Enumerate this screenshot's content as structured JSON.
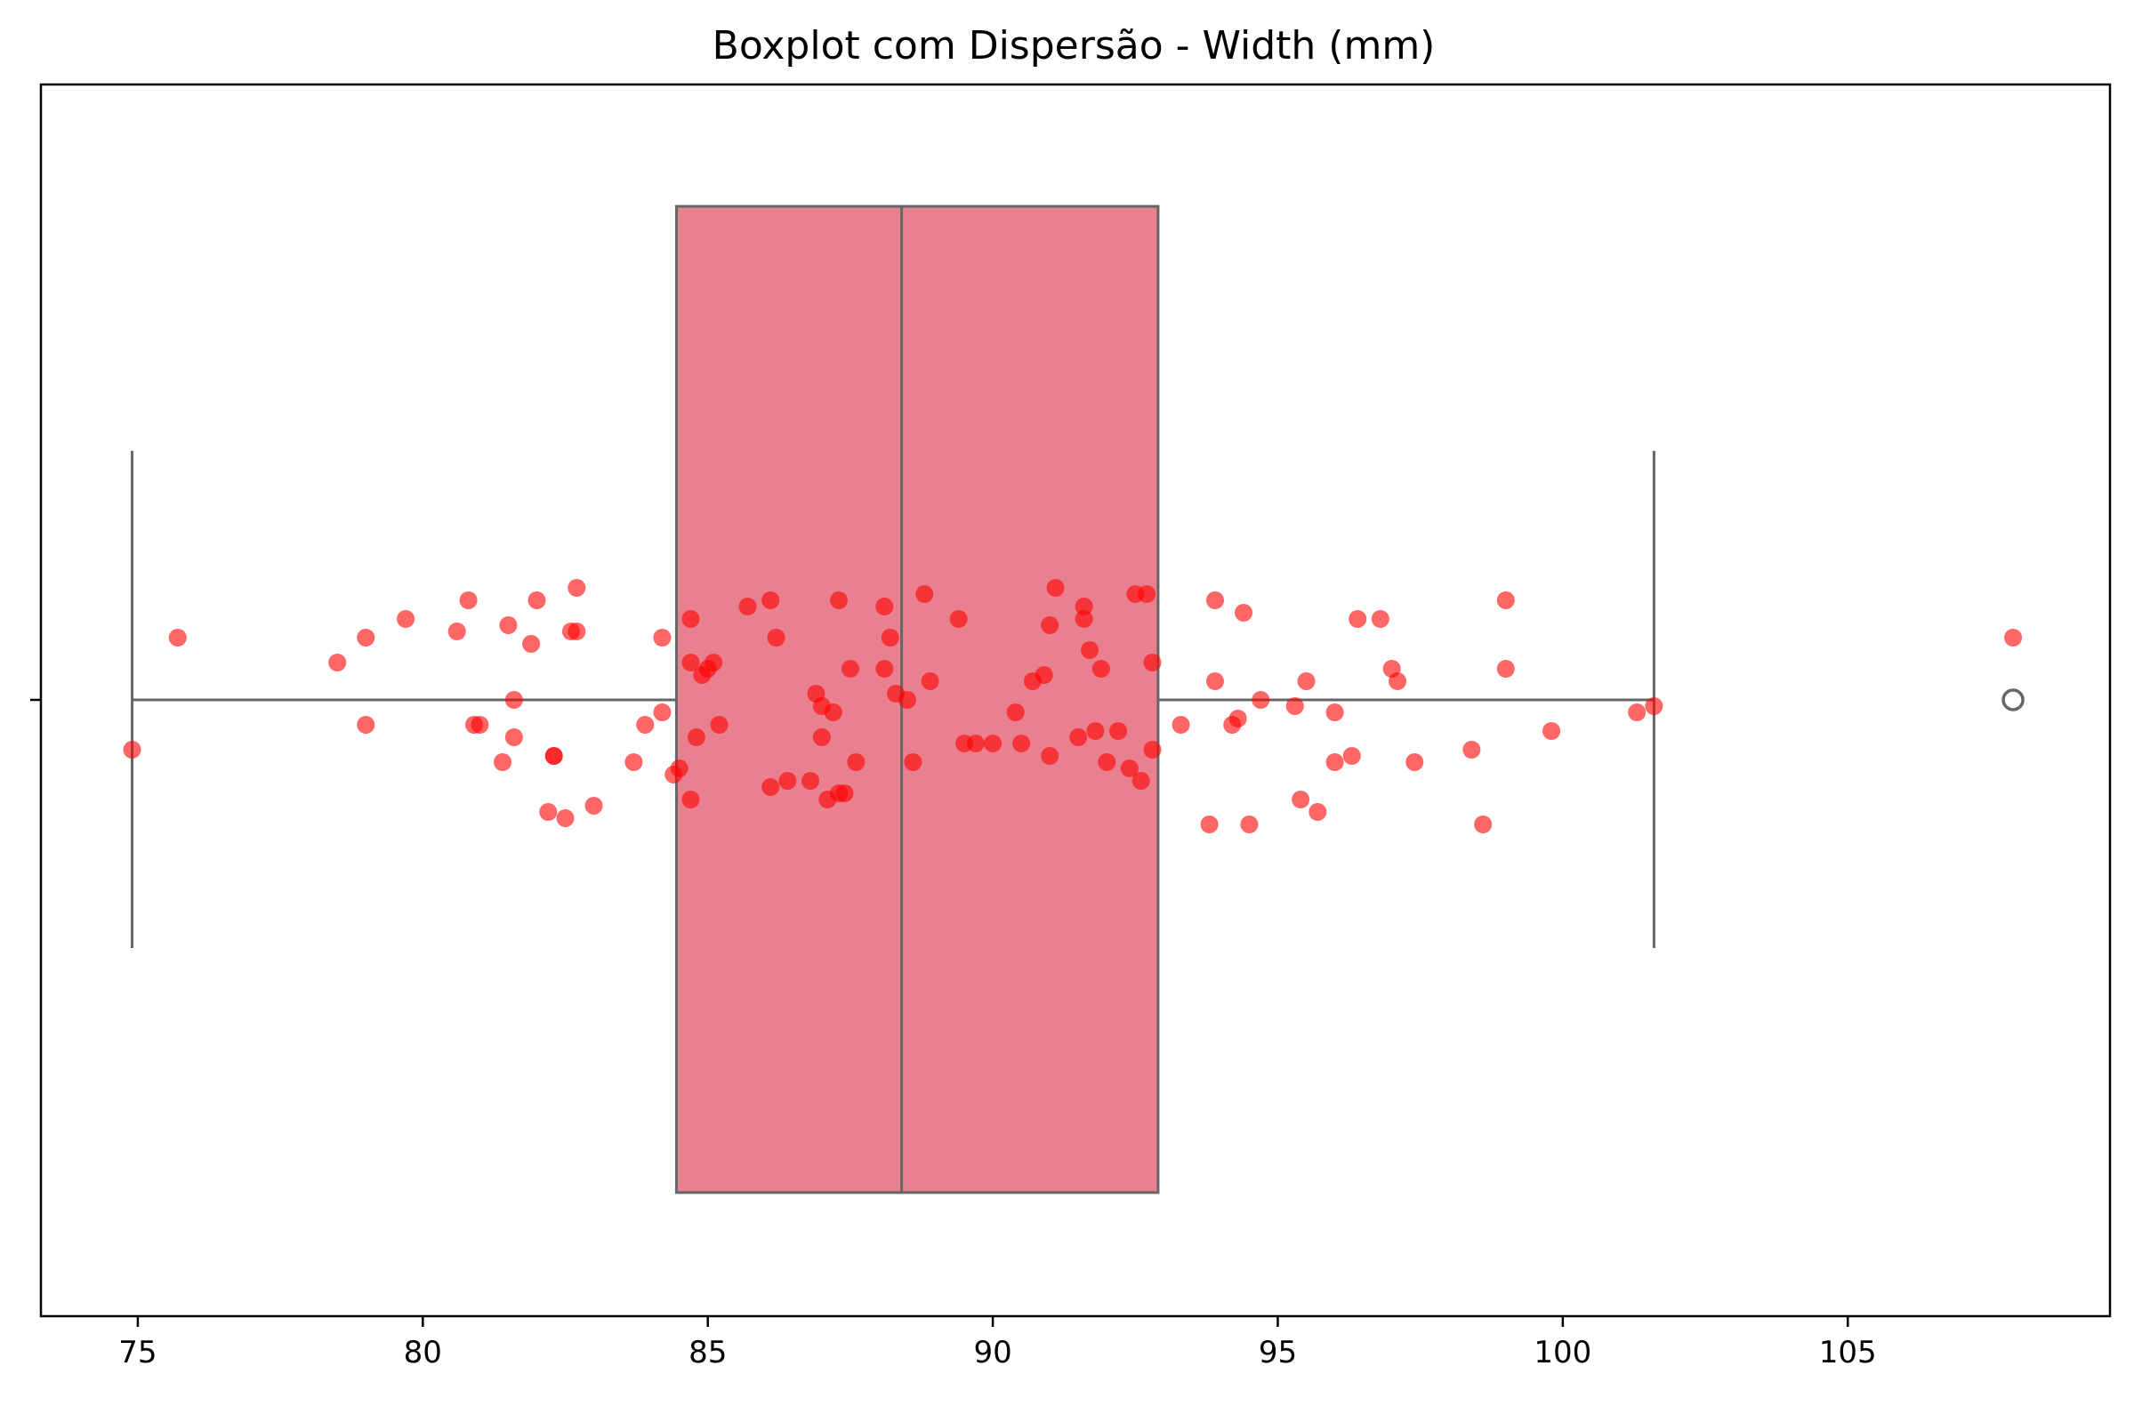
{
  "chart_data": {
    "type": "boxplot",
    "title": "Boxplot com Dispersão - Width (mm)",
    "xlabel": "",
    "ylabel": "",
    "xlim": [
      73.3,
      109.6
    ],
    "xticks": [
      75,
      80,
      85,
      90,
      95,
      100,
      105
    ],
    "grid": false,
    "box": {
      "whisker_low": 74.9,
      "q1": 84.45,
      "median": 88.4,
      "q3": 92.9,
      "whisker_high": 101.6,
      "outliers": [
        107.9
      ],
      "color": "#e8808f",
      "edge_color": "#666666"
    },
    "points_color": "#ff0000",
    "points": [
      [
        74.9,
        -0.08
      ],
      [
        75.7,
        0.1
      ],
      [
        78.5,
        0.06
      ],
      [
        79.0,
        0.1
      ],
      [
        79.0,
        -0.04
      ],
      [
        79.7,
        0.13
      ],
      [
        80.6,
        0.11
      ],
      [
        80.8,
        0.16
      ],
      [
        80.9,
        -0.04
      ],
      [
        81.0,
        -0.04
      ],
      [
        81.4,
        -0.1
      ],
      [
        81.5,
        0.12
      ],
      [
        81.6,
        -0.06
      ],
      [
        81.6,
        0.0
      ],
      [
        81.9,
        0.09
      ],
      [
        82.0,
        0.16
      ],
      [
        82.2,
        -0.18
      ],
      [
        82.3,
        -0.09
      ],
      [
        82.3,
        -0.09
      ],
      [
        82.5,
        -0.19
      ],
      [
        82.6,
        0.11
      ],
      [
        82.7,
        0.18
      ],
      [
        82.7,
        0.11
      ],
      [
        83.0,
        -0.17
      ],
      [
        83.7,
        -0.1
      ],
      [
        83.9,
        -0.04
      ],
      [
        84.2,
        0.1
      ],
      [
        84.2,
        -0.02
      ],
      [
        84.4,
        -0.12
      ],
      [
        84.5,
        -0.11
      ],
      [
        84.7,
        -0.16
      ],
      [
        84.7,
        0.13
      ],
      [
        84.7,
        0.06
      ],
      [
        84.8,
        -0.06
      ],
      [
        84.9,
        0.04
      ],
      [
        85.0,
        0.05
      ],
      [
        85.1,
        0.06
      ],
      [
        85.2,
        -0.04
      ],
      [
        85.7,
        0.15
      ],
      [
        86.1,
        0.16
      ],
      [
        86.1,
        -0.14
      ],
      [
        86.2,
        0.1
      ],
      [
        86.4,
        -0.13
      ],
      [
        86.8,
        -0.13
      ],
      [
        86.9,
        0.01
      ],
      [
        87.0,
        -0.06
      ],
      [
        87.0,
        -0.01
      ],
      [
        87.1,
        -0.16
      ],
      [
        87.2,
        -0.02
      ],
      [
        87.3,
        0.16
      ],
      [
        87.3,
        -0.15
      ],
      [
        87.4,
        -0.15
      ],
      [
        87.5,
        0.05
      ],
      [
        87.6,
        -0.1
      ],
      [
        88.1,
        0.05
      ],
      [
        88.1,
        0.15
      ],
      [
        88.2,
        0.1
      ],
      [
        88.3,
        0.01
      ],
      [
        88.5,
        0.0
      ],
      [
        88.6,
        -0.1
      ],
      [
        88.8,
        0.17
      ],
      [
        88.9,
        0.03
      ],
      [
        89.4,
        0.13
      ],
      [
        89.5,
        -0.07
      ],
      [
        89.7,
        -0.07
      ],
      [
        90.0,
        -0.07
      ],
      [
        90.4,
        -0.02
      ],
      [
        90.5,
        -0.07
      ],
      [
        90.7,
        0.03
      ],
      [
        90.9,
        0.04
      ],
      [
        91.0,
        -0.09
      ],
      [
        91.0,
        0.12
      ],
      [
        91.1,
        0.18
      ],
      [
        91.5,
        -0.06
      ],
      [
        91.6,
        0.13
      ],
      [
        91.6,
        0.15
      ],
      [
        91.7,
        0.08
      ],
      [
        91.8,
        -0.05
      ],
      [
        91.9,
        0.05
      ],
      [
        92.0,
        -0.1
      ],
      [
        92.2,
        -0.05
      ],
      [
        92.4,
        -0.11
      ],
      [
        92.5,
        0.17
      ],
      [
        92.6,
        -0.13
      ],
      [
        92.7,
        0.17
      ],
      [
        92.8,
        -0.08
      ],
      [
        92.8,
        0.06
      ],
      [
        93.3,
        -0.04
      ],
      [
        93.8,
        -0.2
      ],
      [
        93.9,
        0.03
      ],
      [
        93.9,
        0.16
      ],
      [
        94.2,
        -0.04
      ],
      [
        94.3,
        -0.03
      ],
      [
        94.4,
        0.14
      ],
      [
        94.5,
        -0.2
      ],
      [
        94.7,
        0.0
      ],
      [
        95.3,
        -0.01
      ],
      [
        95.4,
        -0.16
      ],
      [
        95.5,
        0.03
      ],
      [
        95.7,
        -0.18
      ],
      [
        96.0,
        -0.1
      ],
      [
        96.0,
        -0.02
      ],
      [
        96.3,
        -0.09
      ],
      [
        96.4,
        0.13
      ],
      [
        96.8,
        0.13
      ],
      [
        97.0,
        0.05
      ],
      [
        97.1,
        0.03
      ],
      [
        97.4,
        -0.1
      ],
      [
        98.4,
        -0.08
      ],
      [
        98.6,
        -0.2
      ],
      [
        99.0,
        0.05
      ],
      [
        99.0,
        0.16
      ],
      [
        99.8,
        -0.05
      ],
      [
        101.3,
        -0.02
      ],
      [
        101.6,
        -0.01
      ],
      [
        107.9,
        0.1
      ]
    ]
  }
}
